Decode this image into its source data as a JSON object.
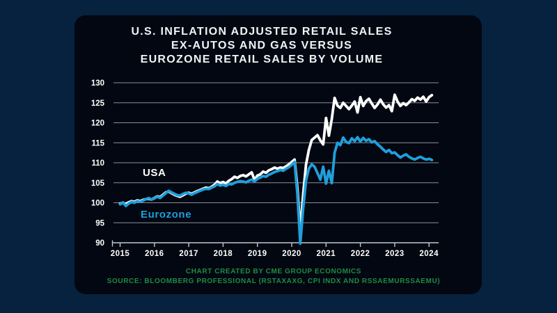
{
  "header": {
    "title_lines": [
      "U.S. INFLATION ADJUSTED RETAIL SALES",
      "EX-AUTOS AND GAS VERSUS",
      "EUROZONE RETAIL SALES BY VOLUME"
    ]
  },
  "footer": {
    "credit": "CHART CREATED BY CME GROUP ECONOMICS",
    "source": "SOURCE: BLOOMBERG PROFESSIONAL (RSTAXAXG, CPI INDX AND RSSAEMURSSAEMU)"
  },
  "colors": {
    "background": "#07223f",
    "panel": "#030711",
    "usa_line": "#ffffff",
    "eurozone_line": "#1f9fdb",
    "gridline": "#8a8f97",
    "axis": "#c3c8d0",
    "tick_label": "#ffffff",
    "footer_green": "#1f8c43"
  },
  "chart_data": {
    "type": "line",
    "title": "U.S. INFLATION ADJUSTED RETAIL SALES EX-AUTOS AND GAS VERSUS EUROZONE RETAIL SALES BY VOLUME",
    "x_unit": "monthly",
    "x_range": [
      "2015-01",
      "2024-02"
    ],
    "x_tick_labels": [
      "2015",
      "2016",
      "2017",
      "2018",
      "2019",
      "2020",
      "2021",
      "2022",
      "2023",
      "2024"
    ],
    "y_ticks": [
      90,
      95,
      100,
      105,
      110,
      115,
      120,
      125,
      130
    ],
    "ylim": [
      90,
      130
    ],
    "grid": "horizontal",
    "legend_position": "inline-annotations",
    "annotations": [
      {
        "id": "usa",
        "text": "USA",
        "color": "#ffffff"
      },
      {
        "id": "eurozone",
        "text": "Eurozone",
        "color": "#1f9fdb"
      }
    ],
    "series": [
      {
        "id": "usa",
        "name": "USA",
        "color": "#ffffff",
        "values": [
          99.8,
          100.0,
          99.7,
          100.1,
          100.4,
          100.2,
          100.6,
          100.4,
          100.7,
          100.9,
          101.0,
          100.8,
          101.2,
          101.6,
          101.4,
          102.0,
          102.6,
          102.8,
          102.4,
          102.0,
          101.7,
          101.5,
          101.9,
          102.3,
          102.5,
          102.2,
          102.6,
          102.9,
          103.2,
          103.5,
          103.8,
          103.6,
          104.0,
          104.5,
          105.3,
          104.9,
          105.2,
          104.8,
          105.5,
          105.9,
          106.5,
          106.2,
          106.7,
          106.9,
          106.6,
          107.1,
          107.6,
          105.7,
          106.8,
          107.1,
          107.8,
          107.5,
          108.1,
          108.4,
          108.8,
          108.5,
          108.8,
          108.7,
          109.1,
          109.6,
          110.2,
          110.8,
          103.5,
          93.0,
          102.0,
          109.5,
          113.2,
          115.7,
          116.3,
          116.9,
          115.6,
          114.6,
          121.2,
          116.8,
          120.9,
          126.2,
          124.3,
          123.7,
          125.0,
          124.2,
          123.4,
          124.3,
          125.3,
          122.6,
          126.4,
          124.2,
          125.4,
          126.0,
          124.8,
          123.7,
          124.6,
          125.8,
          124.6,
          123.8,
          124.4,
          122.9,
          127.0,
          125.3,
          124.2,
          124.9,
          124.4,
          125.1,
          125.9,
          125.5,
          126.3,
          125.8,
          126.5,
          125.3,
          126.4,
          126.9
        ]
      },
      {
        "id": "eurozone",
        "name": "Eurozone",
        "color": "#1f9fdb",
        "values": [
          99.6,
          100.1,
          99.2,
          99.8,
          100.2,
          100.0,
          100.4,
          100.2,
          100.5,
          100.9,
          101.2,
          100.8,
          101.1,
          101.5,
          101.2,
          101.8,
          102.4,
          103.0,
          102.6,
          102.2,
          101.9,
          101.8,
          102.2,
          102.5,
          102.3,
          102.0,
          102.4,
          102.7,
          103.0,
          103.3,
          103.5,
          103.4,
          103.8,
          104.1,
          104.7,
          104.3,
          104.5,
          104.2,
          104.7,
          104.6,
          105.0,
          105.2,
          105.4,
          105.3,
          105.1,
          105.5,
          105.8,
          105.3,
          106.0,
          106.3,
          106.7,
          106.5,
          107.0,
          107.3,
          107.7,
          107.9,
          108.2,
          108.0,
          108.5,
          108.9,
          109.5,
          110.2,
          102.0,
          89.8,
          98.5,
          105.5,
          108.5,
          109.6,
          109.0,
          107.4,
          105.8,
          109.0,
          104.8,
          108.0,
          104.9,
          112.5,
          115.0,
          114.4,
          116.3,
          115.2,
          114.9,
          116.1,
          115.4,
          116.4,
          115.3,
          116.2,
          115.5,
          115.9,
          115.1,
          115.4,
          114.6,
          114.0,
          113.3,
          112.7,
          113.2,
          112.4,
          112.6,
          111.9,
          111.3,
          111.8,
          112.1,
          111.5,
          111.1,
          110.8,
          111.2,
          111.5,
          111.1,
          110.8,
          111.0,
          110.7
        ]
      }
    ]
  }
}
